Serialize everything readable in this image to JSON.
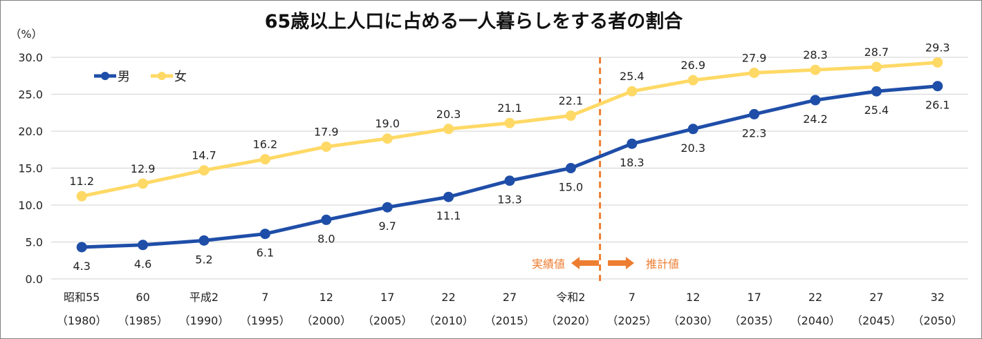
{
  "chart_data": {
    "type": "line",
    "title": "65歳以上人口に占める一人暮らしをする者の割合",
    "ylabel": "（%）",
    "ylim": [
      0,
      30
    ],
    "yticks": [
      "0.0",
      "5.0",
      "10.0",
      "15.0",
      "20.0",
      "25.0",
      "30.0"
    ],
    "grid": true,
    "legend_position": "top-left",
    "categories": [
      [
        "昭和55",
        "（1980）"
      ],
      [
        "60",
        "（1985）"
      ],
      [
        "平成2",
        "（1990）"
      ],
      [
        "7",
        "（1995）"
      ],
      [
        "12",
        "（2000）"
      ],
      [
        "17",
        "（2005）"
      ],
      [
        "22",
        "（2010）"
      ],
      [
        "27",
        "（2015）"
      ],
      [
        "令和2",
        "（2020）"
      ],
      [
        "7",
        "（2025）"
      ],
      [
        "12",
        "（2030）"
      ],
      [
        "17",
        "（2035）"
      ],
      [
        "22",
        "（2040）"
      ],
      [
        "27",
        "（2045）"
      ],
      [
        "32",
        "（2050）"
      ]
    ],
    "series": [
      {
        "name": "男",
        "color": "#1F4EA8",
        "label_position": "below",
        "values": [
          4.3,
          4.6,
          5.2,
          6.1,
          8.0,
          9.7,
          11.1,
          13.3,
          15.0,
          18.3,
          20.3,
          22.3,
          24.2,
          25.4,
          26.1
        ]
      },
      {
        "name": "女",
        "color": "#FFD966",
        "label_position": "above",
        "values": [
          11.2,
          12.9,
          14.7,
          16.2,
          17.9,
          19.0,
          20.3,
          21.1,
          22.1,
          25.4,
          26.9,
          27.9,
          28.3,
          28.7,
          29.3
        ]
      }
    ],
    "annotations": {
      "divider_after_category": "令和2（2020）",
      "divider_color": "#ED7D31",
      "left_label": "実績値",
      "right_label": "推計値"
    }
  }
}
